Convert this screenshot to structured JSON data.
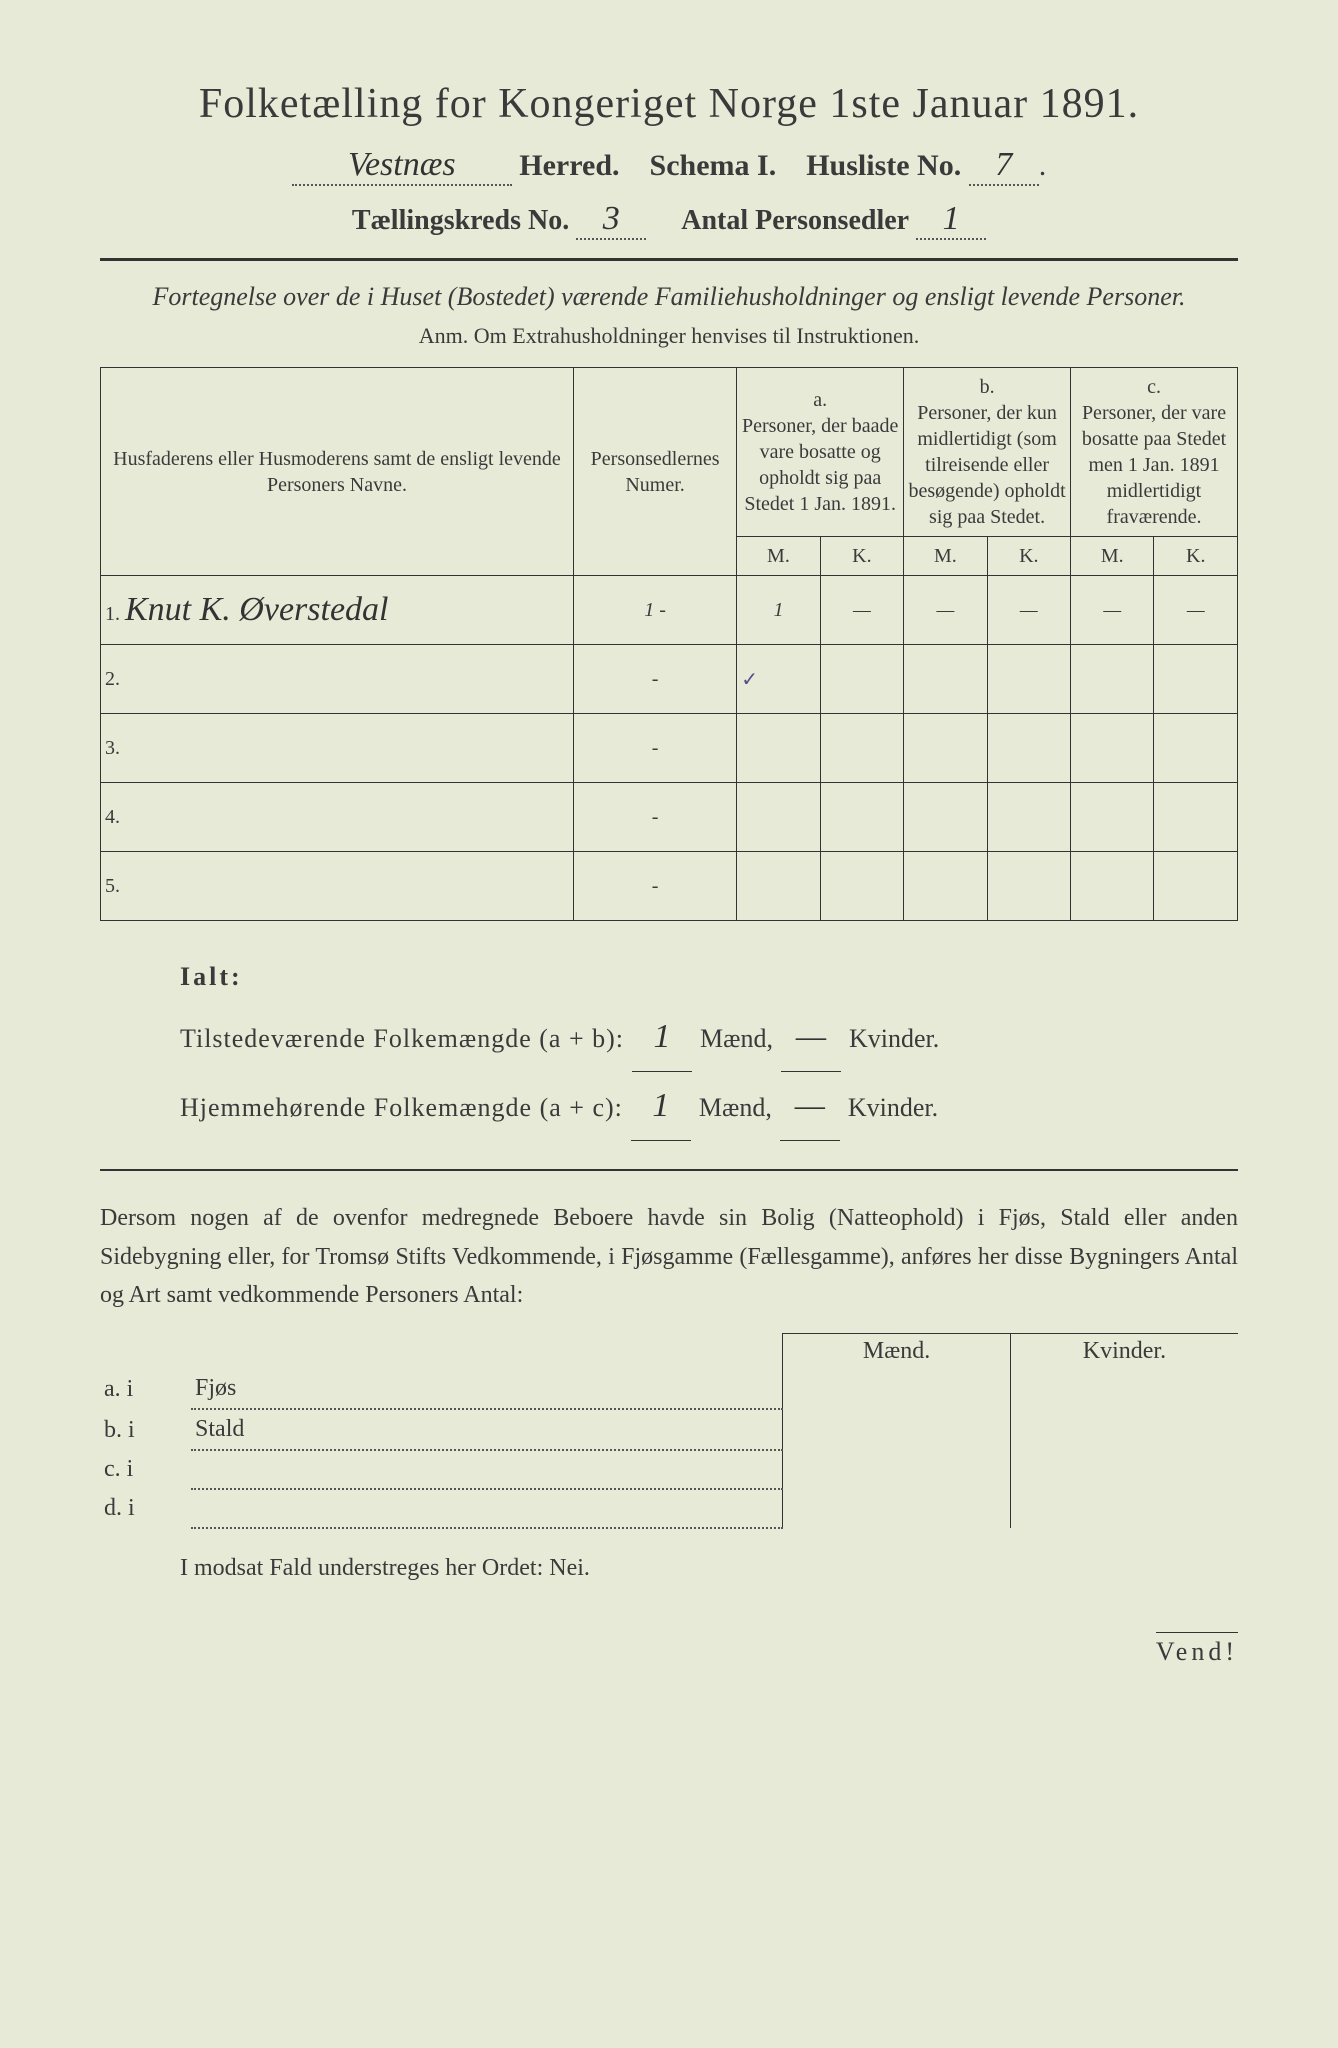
{
  "title": "Folketælling for Kongeriget Norge 1ste Januar 1891.",
  "herred_value": "Vestnæs",
  "herred_label": "Herred.",
  "schema_label": "Schema I.",
  "husliste_label": "Husliste No.",
  "husliste_value": "7",
  "kreds_label": "Tællingskreds No.",
  "kreds_value": "3",
  "antal_label": "Antal Personsedler",
  "antal_value": "1",
  "subtitle": "Fortegnelse over de i Huset (Bostedet) værende Familiehusholdninger og ensligt levende Personer.",
  "anm": "Anm. Om Extrahusholdninger henvises til Instruktionen.",
  "table": {
    "col1": "Husfaderens eller Husmoderens samt de ensligt levende Personers Navne.",
    "col2": "Personsedlernes Numer.",
    "col_a_label": "a.",
    "col_a": "Personer, der baade vare bosatte og opholdt sig paa Stedet 1 Jan. 1891.",
    "col_b_label": "b.",
    "col_b": "Personer, der kun midlertidigt (som tilreisende eller besøgende) opholdt sig paa Stedet.",
    "col_c_label": "c.",
    "col_c": "Personer, der vare bosatte paa Stedet men 1 Jan. 1891 midlertidigt fraværende.",
    "M": "M.",
    "K": "K.",
    "rows": [
      {
        "n": "1.",
        "name": "Knut K. Øverstedal",
        "num": "1 -",
        "aM": "1",
        "aK": "—",
        "bM": "—",
        "bK": "—",
        "cM": "—",
        "cK": "—"
      },
      {
        "n": "2.",
        "name": "",
        "num": "-",
        "aM": "✓",
        "aK": "",
        "bM": "",
        "bK": "",
        "cM": "",
        "cK": ""
      },
      {
        "n": "3.",
        "name": "",
        "num": "-",
        "aM": "",
        "aK": "",
        "bM": "",
        "bK": "",
        "cM": "",
        "cK": ""
      },
      {
        "n": "4.",
        "name": "",
        "num": "-",
        "aM": "",
        "aK": "",
        "bM": "",
        "bK": "",
        "cM": "",
        "cK": ""
      },
      {
        "n": "5.",
        "name": "",
        "num": "-",
        "aM": "",
        "aK": "",
        "bM": "",
        "bK": "",
        "cM": "",
        "cK": ""
      }
    ]
  },
  "ialt": "Ialt:",
  "sum1_label": "Tilstedeværende Folkemængde (a + b):",
  "sum2_label": "Hjemmehørende Folkemængde (a + c):",
  "maend": "Mænd,",
  "kvinder": "Kvinder.",
  "sum1_m": "1",
  "sum1_k": "—",
  "sum2_m": "1",
  "sum2_k": "—",
  "para": "Dersom nogen af de ovenfor medregnede Beboere havde sin Bolig (Natteophold) i Fjøs, Stald eller anden Sidebygning eller, for Tromsø Stifts Vedkommende, i Fjøsgamme (Fællesgamme), anføres her disse Bygningers Antal og Art samt vedkommende Personers Antal:",
  "outb_maend": "Mænd.",
  "outb_kvinder": "Kvinder.",
  "outb_rows": [
    {
      "l": "a. i",
      "t": "Fjøs"
    },
    {
      "l": "b. i",
      "t": "Stald"
    },
    {
      "l": "c. i",
      "t": ""
    },
    {
      "l": "d. i",
      "t": ""
    }
  ],
  "nei": "I modsat Fald understreges her Ordet: Nei.",
  "vend": "Vend!",
  "colors": {
    "paper": "#e8ead8",
    "ink": "#3a3a3a",
    "hand": "#333"
  }
}
